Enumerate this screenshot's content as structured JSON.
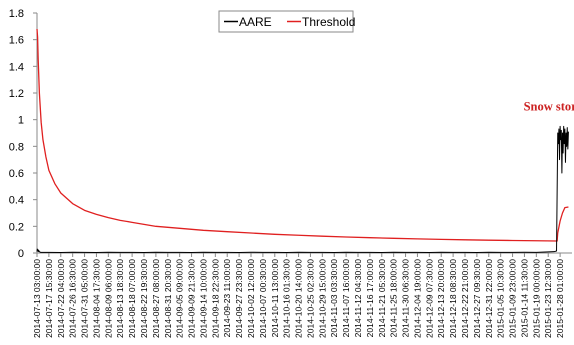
{
  "chart_data": {
    "type": "line",
    "ylim": [
      0,
      1.8
    ],
    "yticks": [
      "0",
      "0.2",
      "0.4",
      "0.6",
      "0.8",
      "1",
      "1.2",
      "1.4",
      "1.6",
      "1.8"
    ],
    "grid": false,
    "legend_position": "top-center",
    "x_labels": [
      "2014-07-13 03:00:00",
      "2014-07-17 15:30:00",
      "2014-07-22 04:00:00",
      "2014-07-26 16:30:00",
      "2014-07-31 05:00:00",
      "2014-08-04 17:30:00",
      "2014-08-09 06:00:00",
      "2014-08-13 18:30:00",
      "2014-08-18 07:00:00",
      "2014-08-22 19:30:00",
      "2014-08-27 08:00:00",
      "2014-08-31 20:30:00",
      "2014-09-05 09:00:00",
      "2014-09-09 21:30:00",
      "2014-09-14 10:00:00",
      "2014-09-18 22:30:00",
      "2014-09-23 11:00:00",
      "2014-09-27 23:30:00",
      "2014-10-02 12:00:00",
      "2014-10-07 00:30:00",
      "2014-10-11 13:00:00",
      "2014-10-16 01:30:00",
      "2014-10-20 14:00:00",
      "2014-10-25 02:30:00",
      "2014-10-29 15:00:00",
      "2014-11-03 03:30:00",
      "2014-11-07 16:00:00",
      "2014-11-12 04:30:00",
      "2014-11-16 17:00:00",
      "2014-11-21 05:30:00",
      "2014-11-25 18:00:00",
      "2014-11-30 06:30:00",
      "2014-12-04 19:00:00",
      "2014-12-09 07:30:00",
      "2014-12-13 20:00:00",
      "2014-12-18 08:30:00",
      "2014-12-22 21:00:00",
      "2014-12-27 09:30:00",
      "2014-12-31 22:00:00",
      "2015-01-05 10:30:00",
      "2015-01-09 23:00:00",
      "2015-01-14 11:30:00",
      "2015-01-19 00:00:00",
      "2015-01-23 12:30:00",
      "2015-01-28 01:00:00"
    ],
    "series": [
      {
        "name": "AARE",
        "color": "#000000",
        "points": [
          [
            0,
            0.01
          ],
          [
            0.02,
            0.03
          ],
          [
            0.05,
            0.02
          ],
          [
            0.08,
            0.025
          ],
          [
            0.11,
            0.01
          ],
          [
            0.14,
            0.02
          ],
          [
            0.17,
            0.015
          ],
          [
            0.2,
            0.01
          ],
          [
            0.3,
            0.005
          ],
          [
            1,
            0.005
          ],
          [
            2,
            0.004
          ],
          [
            3,
            0.006
          ],
          [
            4,
            0.005
          ],
          [
            5,
            0.004
          ],
          [
            6,
            0.006
          ],
          [
            7,
            0.005
          ],
          [
            8,
            0.005
          ],
          [
            9,
            0.004
          ],
          [
            10,
            0.006
          ],
          [
            11,
            0.005
          ],
          [
            12,
            0.005
          ],
          [
            13,
            0.004
          ],
          [
            14,
            0.006
          ],
          [
            15,
            0.005
          ],
          [
            16,
            0.005
          ],
          [
            17,
            0.004
          ],
          [
            18,
            0.006
          ],
          [
            19,
            0.005
          ],
          [
            20,
            0.005
          ],
          [
            21,
            0.004
          ],
          [
            22,
            0.006
          ],
          [
            23,
            0.005
          ],
          [
            24,
            0.005
          ],
          [
            25,
            0.004
          ],
          [
            26,
            0.006
          ],
          [
            27,
            0.005
          ],
          [
            28,
            0.005
          ],
          [
            29,
            0.004
          ],
          [
            30,
            0.006
          ],
          [
            31,
            0.005
          ],
          [
            32,
            0.005
          ],
          [
            33,
            0.004
          ],
          [
            34,
            0.006
          ],
          [
            35,
            0.005
          ],
          [
            36,
            0.005
          ],
          [
            37,
            0.004
          ],
          [
            38,
            0.006
          ],
          [
            39,
            0.005
          ],
          [
            40,
            0.005
          ],
          [
            41,
            0.006
          ],
          [
            42,
            0.005
          ],
          [
            43,
            0.008
          ],
          [
            43.5,
            0.01
          ],
          [
            43.7,
            0.015
          ],
          [
            43.8,
            0.9
          ],
          [
            43.85,
            0.82
          ],
          [
            43.9,
            0.93
          ],
          [
            43.95,
            0.7
          ],
          [
            44.0,
            0.95
          ],
          [
            44.05,
            0.85
          ],
          [
            44.1,
            0.92
          ],
          [
            44.15,
            0.6
          ],
          [
            44.2,
            0.9
          ],
          [
            44.25,
            0.75
          ],
          [
            44.3,
            0.95
          ],
          [
            44.35,
            0.82
          ],
          [
            44.4,
            0.93
          ],
          [
            44.45,
            0.68
          ],
          [
            44.5,
            0.9
          ],
          [
            44.55,
            0.8
          ],
          [
            44.6,
            0.94
          ],
          [
            44.65,
            0.78
          ],
          [
            44.7,
            0.91
          ]
        ]
      },
      {
        "name": "Threshold",
        "color": "#e02020",
        "points": [
          [
            0,
            1.68
          ],
          [
            0.05,
            1.62
          ],
          [
            0.1,
            1.45
          ],
          [
            0.2,
            1.2
          ],
          [
            0.35,
            0.98
          ],
          [
            0.5,
            0.85
          ],
          [
            0.75,
            0.72
          ],
          [
            1,
            0.62
          ],
          [
            1.5,
            0.52
          ],
          [
            2,
            0.45
          ],
          [
            3,
            0.37
          ],
          [
            4,
            0.32
          ],
          [
            5,
            0.29
          ],
          [
            6,
            0.265
          ],
          [
            7,
            0.245
          ],
          [
            8,
            0.23
          ],
          [
            9,
            0.215
          ],
          [
            10,
            0.2
          ],
          [
            12,
            0.185
          ],
          [
            14,
            0.17
          ],
          [
            16,
            0.16
          ],
          [
            18,
            0.15
          ],
          [
            20,
            0.14
          ],
          [
            22,
            0.133
          ],
          [
            24,
            0.126
          ],
          [
            26,
            0.12
          ],
          [
            28,
            0.115
          ],
          [
            30,
            0.11
          ],
          [
            32,
            0.106
          ],
          [
            34,
            0.102
          ],
          [
            36,
            0.099
          ],
          [
            38,
            0.096
          ],
          [
            40,
            0.094
          ],
          [
            42,
            0.092
          ],
          [
            43.75,
            0.09
          ],
          [
            43.8,
            0.15
          ],
          [
            44.0,
            0.24
          ],
          [
            44.2,
            0.3
          ],
          [
            44.4,
            0.34
          ],
          [
            44.7,
            0.345
          ]
        ]
      }
    ],
    "annotations": [
      {
        "text": "Snow storm",
        "x": 43.6,
        "y": 1.1,
        "color": "#cc2222"
      }
    ]
  }
}
